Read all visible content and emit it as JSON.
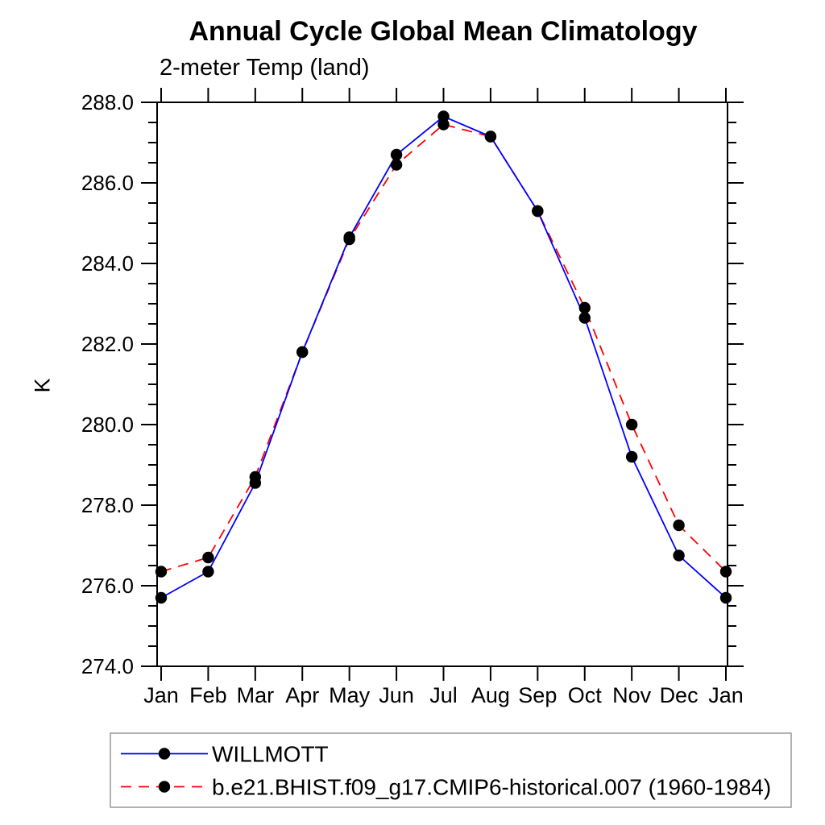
{
  "chart_data": {
    "type": "line",
    "title": "Annual Cycle Global Mean Climatology",
    "subtitle": "2-meter Temp (land)",
    "ylabel": "K",
    "xlabel": "",
    "categories": [
      "Jan",
      "Feb",
      "Mar",
      "Apr",
      "May",
      "Jun",
      "Jul",
      "Aug",
      "Sep",
      "Oct",
      "Nov",
      "Dec",
      "Jan"
    ],
    "ylim": [
      274.0,
      288.0
    ],
    "ytick_major_step": 2.0,
    "ytick_minor_step": 0.5,
    "ytick_labels": [
      "274.0",
      "276.0",
      "278.0",
      "280.0",
      "282.0",
      "284.0",
      "286.0",
      "288.0"
    ],
    "grid": false,
    "axis_color": "#000000",
    "marker_color": "#000000",
    "legend_position": "bottom-left-box",
    "series": [
      {
        "name": "WILLMOTT",
        "line_color": "#0000ff",
        "line_style": "solid",
        "marker": "filled-circle",
        "values": [
          275.7,
          276.35,
          278.55,
          281.8,
          284.65,
          286.7,
          287.65,
          287.15,
          285.3,
          282.65,
          279.2,
          276.75,
          275.7
        ]
      },
      {
        "name": "b.e21.BHIST.f09_g17.CMIP6-historical.007 (1960-1984)",
        "line_color": "#ff0000",
        "line_style": "dashed",
        "marker": "filled-circle",
        "values": [
          276.35,
          276.7,
          278.7,
          281.8,
          284.6,
          286.45,
          287.45,
          287.15,
          285.3,
          282.9,
          280.0,
          277.5,
          276.35
        ]
      }
    ]
  }
}
